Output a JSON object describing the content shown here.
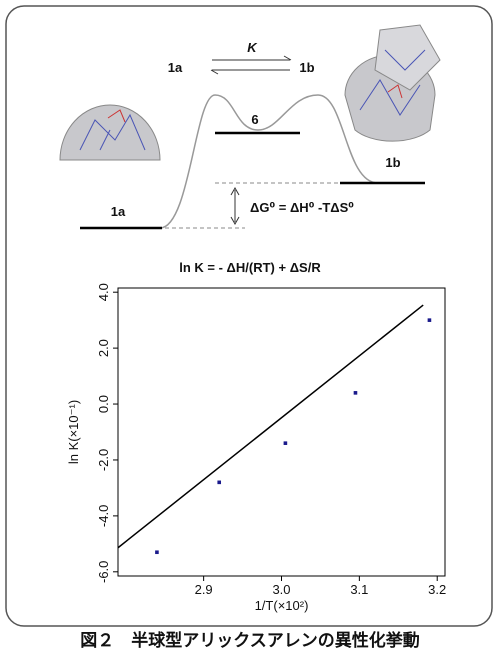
{
  "diagram": {
    "top_left": "1a",
    "constant": "K",
    "top_right": "1b",
    "intermediate": "6",
    "right_state": "1b",
    "left_state": "1a",
    "gibbs": "ΔG⁰ = ΔH⁰ -TΔS⁰",
    "equation": "ln K = - ΔH/(RT) + ΔS/R"
  },
  "caption": "図２　半球型アリックスアレンの異性化挙動",
  "chart_data": {
    "type": "scatter",
    "x_label": "1/T(×10²)",
    "y_label": "ln K(×10⁻¹)",
    "x": [
      2.84,
      2.92,
      3.005,
      3.095,
      3.19
    ],
    "values": [
      -5.3,
      -2.8,
      -1.4,
      0.4,
      3.0
    ],
    "color": "#1a1a8c",
    "fit_line": {
      "x": [
        2.79,
        3.182
      ],
      "y": [
        -5.14,
        3.54
      ],
      "color": "#000000"
    },
    "xlim": [
      2.79,
      3.21
    ],
    "ylim": [
      -6.15,
      4.15
    ],
    "xticks": [
      2.9,
      {
        "value": 3,
        "label": "3.0"
      },
      3.1,
      3.2
    ],
    "yticks": [
      {
        "value": -6,
        "label": "-6.0"
      },
      {
        "value": -4,
        "label": "-4.0"
      },
      {
        "value": -2,
        "label": "-2.0"
      },
      {
        "value": 0,
        "label": "0.0"
      },
      {
        "value": 2,
        "label": "2.0"
      },
      {
        "value": 4,
        "label": "4.0"
      }
    ]
  }
}
